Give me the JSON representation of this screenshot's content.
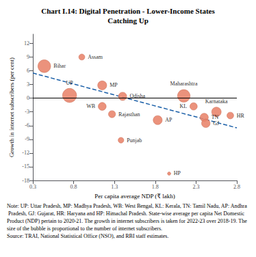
{
  "chart_data": {
    "type": "scatter",
    "title": "Chart I.14: Digital Penetration - Lower-Income States\nCatching Up",
    "xlabel": "Per capita average NDP (₹ lakh)",
    "ylabel": "Growth in internet subscribers (per cent)",
    "xlim": [
      0.3,
      2.8
    ],
    "ylim": [
      -18,
      14
    ],
    "xticks": [
      0.3,
      0.8,
      1.3,
      1.8,
      2.3,
      2.8
    ],
    "yticks": [
      -18,
      -15,
      -12,
      -9,
      -6,
      -3,
      0,
      3,
      6,
      9,
      12
    ],
    "grid": false,
    "series": [
      {
        "type": "scatter",
        "color": "#e8836a",
        "edge_color": "#c96a50",
        "labels": [
          "Bihar",
          "Assam",
          "UP",
          "MP",
          "WB",
          "Rajasthan",
          "Odisha",
          "AP",
          "Punjab",
          "HP",
          "Maharashtra",
          "KL",
          "Karnataka",
          "TN",
          "GJ",
          "HR"
        ],
        "x": [
          0.44,
          0.9,
          0.75,
          1.15,
          1.15,
          1.27,
          1.4,
          1.83,
          1.38,
          1.97,
          2.15,
          2.27,
          2.55,
          2.4,
          2.42,
          2.72
        ],
        "y": [
          7.0,
          9.0,
          0.6,
          2.8,
          -1.8,
          -3.5,
          0.4,
          -4.8,
          -9.2,
          -16.5,
          0.5,
          -1.8,
          -3.0,
          -4.2,
          -5.5,
          -3.8
        ],
        "sizes": [
          180,
          40,
          220,
          90,
          70,
          55,
          75,
          90,
          35,
          12,
          175,
          60,
          100,
          75,
          80,
          50
        ]
      },
      {
        "type": "line",
        "color": "#1a5fa8",
        "line_style": "dashed",
        "x": [
          0.3,
          2.8
        ],
        "y": [
          5.5,
          -6.5
        ]
      }
    ],
    "reference_lines": [
      {
        "y": 0,
        "color": "#000000"
      }
    ],
    "note": "Note: UP: Uttar Pradesh, MP: Madhya Pradesh, WB: West Bengal, KL: Kerala, TN: Tamil Nadu, AP: Andhra Pradesh, GJ: Gujarat, HR: Haryana and HP: Himachal Pradesh. State-wise average per capita Net Domestic Product (NDP) pertain to 2020-21. The growth in internet subscribers is taken for 2022-23 over 2018-19. The size of the bubble is proportional to the number of internet subscribers.",
    "source": "Source: TRAI, National Statistical Office (NSO), and RBI staff estimates."
  }
}
